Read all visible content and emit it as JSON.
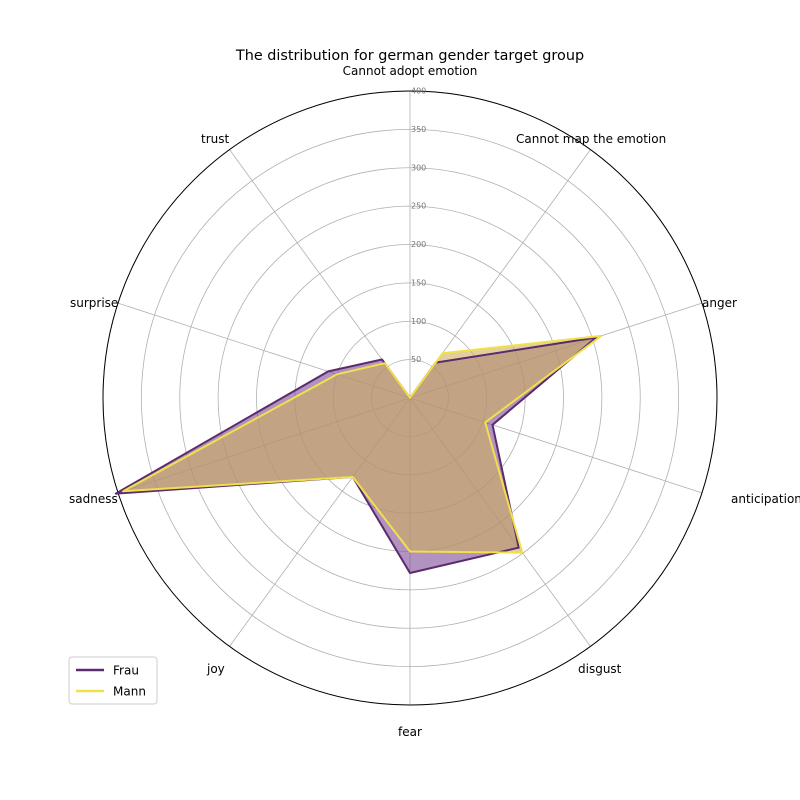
{
  "chart_data": {
    "type": "radar",
    "title": "The distribution for german gender target group",
    "categories": [
      "Cannot adopt emotion",
      "Cannot map the emotion",
      "anger",
      "anticipation",
      "disgust",
      "fear",
      "joy",
      "sadness",
      "surprise",
      "trust"
    ],
    "rlim": [
      0,
      400
    ],
    "rticks": [
      50,
      100,
      150,
      200,
      250,
      300,
      350,
      400
    ],
    "grid": true,
    "legend_position": "lower-left",
    "series": [
      {
        "name": "Frau",
        "color": "#5c2a6e",
        "fill": "#7d4a97",
        "values": [
          0,
          57,
          255,
          113,
          241,
          228,
          127,
          403,
          112,
          62
        ]
      },
      {
        "name": "Mann",
        "color": "#f0e04a",
        "fill": "#cdb05e",
        "values": [
          0,
          72,
          262,
          103,
          249,
          200,
          127,
          393,
          100,
          56
        ]
      }
    ]
  }
}
